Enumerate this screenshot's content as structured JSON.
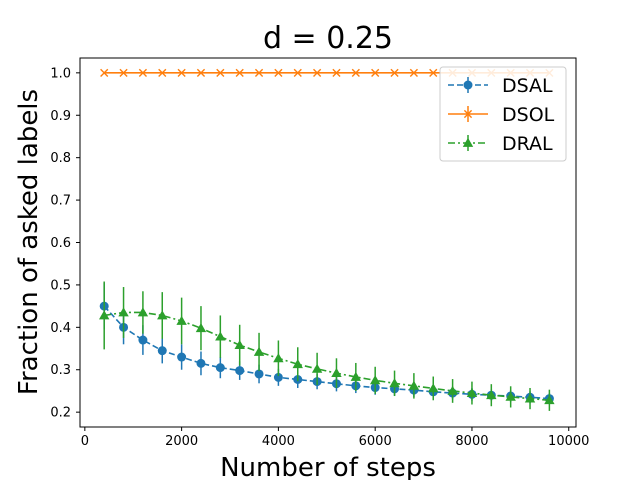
{
  "chart_data": {
    "type": "line",
    "title": "d = 0.25",
    "xlabel": "Number of steps",
    "ylabel": "Fraction of asked labels",
    "xlim": [
      -100,
      10150
    ],
    "ylim": [
      0.165,
      1.035
    ],
    "xticks": [
      0,
      2000,
      4000,
      6000,
      8000,
      10000
    ],
    "yticks": [
      0.2,
      0.3,
      0.4,
      0.5,
      0.6,
      0.7,
      0.8,
      0.9,
      1.0
    ],
    "xtick_labels": [
      "0",
      "2000",
      "4000",
      "6000",
      "8000",
      "10000"
    ],
    "ytick_labels": [
      "0.2",
      "0.3",
      "0.4",
      "0.5",
      "0.6",
      "0.7",
      "0.8",
      "0.9",
      "1.0"
    ],
    "legend_position": "top-right",
    "x": [
      400,
      800,
      1200,
      1600,
      2000,
      2400,
      2800,
      3200,
      3600,
      4000,
      4400,
      4800,
      5200,
      5600,
      6000,
      6400,
      6800,
      7200,
      7600,
      8000,
      8400,
      8800,
      9200,
      9600
    ],
    "series": [
      {
        "name": "DSAL",
        "color": "#1f77b4",
        "marker": "circle",
        "linestyle": "dashed",
        "values": [
          0.45,
          0.4,
          0.37,
          0.345,
          0.33,
          0.315,
          0.305,
          0.298,
          0.29,
          0.282,
          0.277,
          0.272,
          0.267,
          0.262,
          0.258,
          0.255,
          0.252,
          0.248,
          0.245,
          0.242,
          0.24,
          0.238,
          0.235,
          0.232
        ],
        "errors": [
          0.055,
          0.04,
          0.035,
          0.03,
          0.03,
          0.028,
          0.025,
          0.022,
          0.022,
          0.02,
          0.02,
          0.018,
          0.018,
          0.017,
          0.017,
          0.016,
          0.016,
          0.015,
          0.015,
          0.015,
          0.014,
          0.014,
          0.014,
          0.013
        ]
      },
      {
        "name": "DSOL",
        "color": "#ff7f0e",
        "marker": "x",
        "linestyle": "solid",
        "values": [
          1.0,
          1.0,
          1.0,
          1.0,
          1.0,
          1.0,
          1.0,
          1.0,
          1.0,
          1.0,
          1.0,
          1.0,
          1.0,
          1.0,
          1.0,
          1.0,
          1.0,
          1.0,
          1.0,
          1.0,
          1.0,
          1.0,
          1.0,
          1.0
        ],
        "errors": [
          0,
          0,
          0,
          0,
          0,
          0,
          0,
          0,
          0,
          0,
          0,
          0,
          0,
          0,
          0,
          0,
          0,
          0,
          0,
          0,
          0,
          0,
          0,
          0
        ]
      },
      {
        "name": "DRAL",
        "color": "#2ca02c",
        "marker": "triangle",
        "linestyle": "dashdot",
        "values": [
          0.428,
          0.435,
          0.435,
          0.428,
          0.415,
          0.398,
          0.378,
          0.358,
          0.342,
          0.327,
          0.313,
          0.302,
          0.292,
          0.283,
          0.275,
          0.268,
          0.262,
          0.256,
          0.25,
          0.245,
          0.24,
          0.236,
          0.232,
          0.228
        ],
        "errors": [
          0.08,
          0.06,
          0.05,
          0.055,
          0.055,
          0.052,
          0.05,
          0.048,
          0.045,
          0.042,
          0.04,
          0.038,
          0.035,
          0.033,
          0.032,
          0.03,
          0.03,
          0.028,
          0.028,
          0.027,
          0.026,
          0.025,
          0.025,
          0.025
        ]
      }
    ]
  }
}
